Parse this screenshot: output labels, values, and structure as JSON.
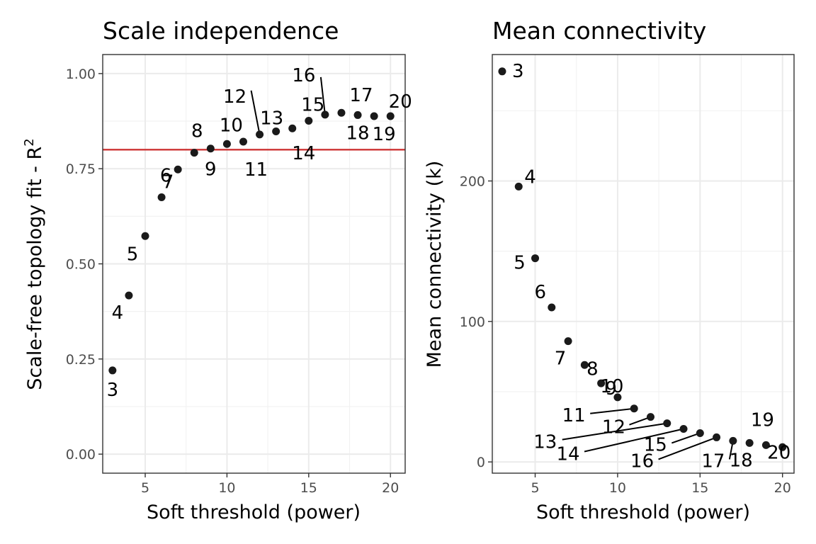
{
  "chart_data": [
    {
      "type": "scatter",
      "title": "Scale independence",
      "xlabel": "Soft threshold (power)",
      "ylabel": "Scale-free topology fit - R",
      "ylabel_superscript": "2",
      "xlim": [
        2.4,
        20.9
      ],
      "ylim": [
        -0.05,
        1.05
      ],
      "xticks": [
        5,
        10,
        15,
        20
      ],
      "xtick_labels": [
        "5",
        "10",
        "15",
        "20"
      ],
      "yticks": [
        0,
        0.25,
        0.5,
        0.75,
        1
      ],
      "ytick_labels": [
        "0.00",
        "0.25",
        "0.50",
        "0.75",
        "1.00"
      ],
      "grid": true,
      "hline": {
        "y": 0.8,
        "color": "#cd3333"
      },
      "point_color": "#1a1a1a",
      "x": [
        3,
        4,
        5,
        6,
        7,
        8,
        9,
        10,
        11,
        12,
        13,
        14,
        15,
        16,
        17,
        18,
        19,
        20
      ],
      "y": [
        0.22,
        0.417,
        0.573,
        0.675,
        0.748,
        0.792,
        0.803,
        0.815,
        0.821,
        0.84,
        0.848,
        0.856,
        0.876,
        0.892,
        0.897,
        0.891,
        0.888,
        0.888
      ],
      "labels": [
        "3",
        "4",
        "5",
        "6",
        "7",
        "8",
        "9",
        "10",
        "11",
        "12",
        "13",
        "14",
        "15",
        "16",
        "17",
        "18",
        "19",
        "20"
      ]
    },
    {
      "type": "scatter",
      "title": "Mean connectivity",
      "xlabel": "Soft threshold (power)",
      "ylabel": "Mean connectivity (k)",
      "xlim": [
        2.4,
        20.7
      ],
      "ylim": [
        -8,
        290
      ],
      "xticks": [
        5,
        10,
        15,
        20
      ],
      "xtick_labels": [
        "5",
        "10",
        "15",
        "20"
      ],
      "yticks": [
        0,
        100,
        200
      ],
      "ytick_labels": [
        "0",
        "100",
        "200"
      ],
      "grid": true,
      "point_color": "#1a1a1a",
      "x": [
        3,
        4,
        5,
        6,
        7,
        8,
        9,
        10,
        11,
        12,
        13,
        14,
        15,
        16,
        17,
        18,
        19,
        20
      ],
      "y": [
        278,
        196,
        145,
        110,
        86,
        69,
        56,
        46,
        38,
        32,
        27.5,
        23.5,
        20.5,
        17.5,
        15,
        13.5,
        12,
        10.5
      ],
      "labels": [
        "3",
        "4",
        "5",
        "6",
        "7",
        "8",
        "9",
        "10",
        "11",
        "12",
        "13",
        "14",
        "15",
        "16",
        "17",
        "18",
        "19",
        "20"
      ]
    }
  ]
}
